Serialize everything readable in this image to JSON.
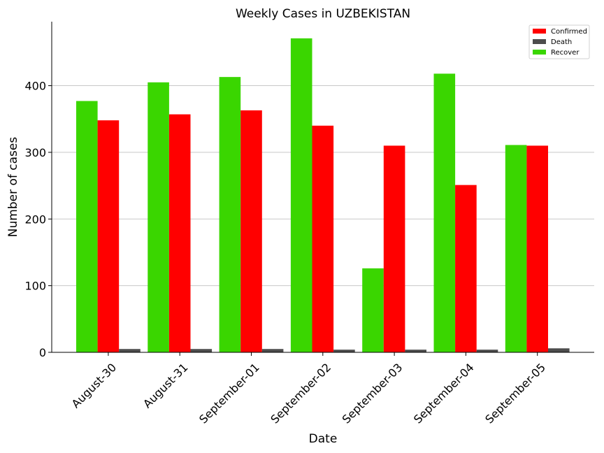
{
  "chart_data": {
    "type": "bar",
    "title": "Weekly Cases in UZBEKISTAN",
    "xlabel": "Date",
    "ylabel": "Number of cases",
    "categories": [
      "August-30",
      "August-31",
      "September-01",
      "September-02",
      "September-03",
      "September-04",
      "September-05"
    ],
    "series": [
      {
        "name": "Recover",
        "color": "#3ad600",
        "values": [
          377,
          405,
          413,
          471,
          126,
          418,
          311
        ]
      },
      {
        "name": "Confirmed",
        "color": "#ff0000",
        "values": [
          348,
          357,
          363,
          340,
          310,
          251,
          310
        ]
      },
      {
        "name": "Death",
        "color": "#4d4d4d",
        "values": [
          5,
          5,
          5,
          4,
          4,
          4,
          6
        ]
      }
    ],
    "legend_order": [
      "Confirmed",
      "Death",
      "Recover"
    ],
    "ylim": [
      0,
      496
    ],
    "yticks": [
      0,
      100,
      200,
      300,
      400
    ],
    "grid": "horizontal",
    "legend_position": "top-right"
  }
}
